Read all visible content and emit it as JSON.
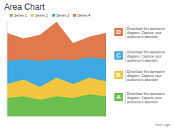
{
  "chart_data": {
    "type": "area",
    "title": "Area Chart",
    "stacked": true,
    "tick_labels": false,
    "grid": false,
    "legend": "top",
    "categories": [
      null,
      null,
      null,
      null,
      null,
      null,
      null
    ],
    "ylim": [
      0,
      102
    ],
    "series": [
      {
        "name": "Series 1",
        "color": "#6cbf4e",
        "values": [
          20,
          22,
          18,
          22,
          20,
          24,
          22
        ]
      },
      {
        "name": "Series 2",
        "color": "#f3c640",
        "values": [
          15,
          18,
          14,
          20,
          15,
          18,
          16
        ]
      },
      {
        "name": "Series 3",
        "color": "#3ea8e2",
        "values": [
          25,
          22,
          28,
          20,
          26,
          22,
          24
        ]
      },
      {
        "name": "Series 4",
        "color": "#e0794c",
        "values": [
          30,
          22,
          28,
          40,
          18,
          22,
          28
        ]
      }
    ]
  },
  "panel": {
    "items": [
      {
        "letter": "D",
        "color": "#e0794c",
        "text": "Download this awesome diagram. Capture your audience's attention"
      },
      {
        "letter": "C",
        "color": "#3ea8e2",
        "text": "Download this awesome diagram. Capture your audience's attention"
      },
      {
        "letter": "B",
        "color": "#f3c640",
        "text": "Download this awesome diagram. Capture your audience's attention"
      },
      {
        "letter": "A",
        "color": "#6cbf4e",
        "text": "Download this awesome diagram. Capture your audience's attention"
      }
    ]
  },
  "logo": "Your Logo"
}
